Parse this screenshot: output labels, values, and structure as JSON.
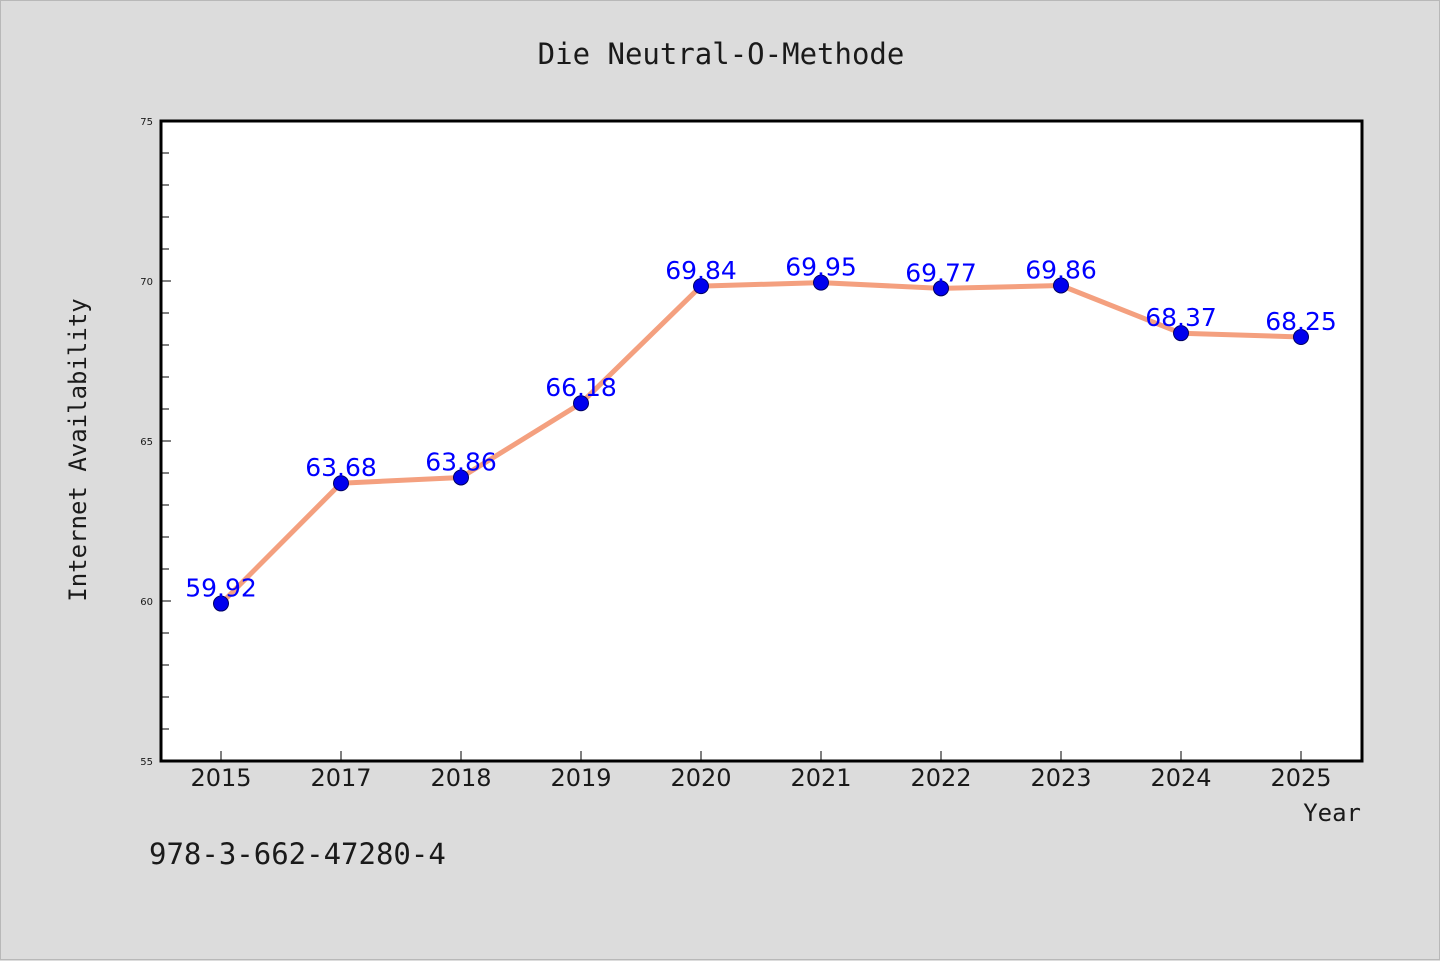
{
  "chart_data": {
    "type": "line",
    "title": "Die Neutral-O-Methode",
    "xlabel": "Year",
    "ylabel": "Internet Availability",
    "categories": [
      "2015",
      "2017",
      "2018",
      "2019",
      "2020",
      "2021",
      "2022",
      "2023",
      "2024",
      "2025"
    ],
    "series": [
      {
        "values": [
          59.92,
          63.68,
          63.86,
          66.18,
          69.84,
          69.95,
          69.77,
          69.86,
          68.37,
          68.25
        ],
        "data_labels": [
          "59.92",
          "63.68",
          "63.86",
          "66.18",
          "69.84",
          "69.95",
          "69.77",
          "69.86",
          "68.37",
          "68.25"
        ]
      }
    ],
    "ylim": [
      55,
      75
    ],
    "yticks": [
      "55",
      "60",
      "65",
      "70",
      "75"
    ],
    "grid": false,
    "legend": "none",
    "colors": {
      "line": "#f4a07f",
      "marker": "#0000ee",
      "data_label": "#0000ff",
      "background": "#dcdcdc",
      "plot_background": "#ffffff"
    }
  },
  "footer_text": "978-3-662-47280-4"
}
